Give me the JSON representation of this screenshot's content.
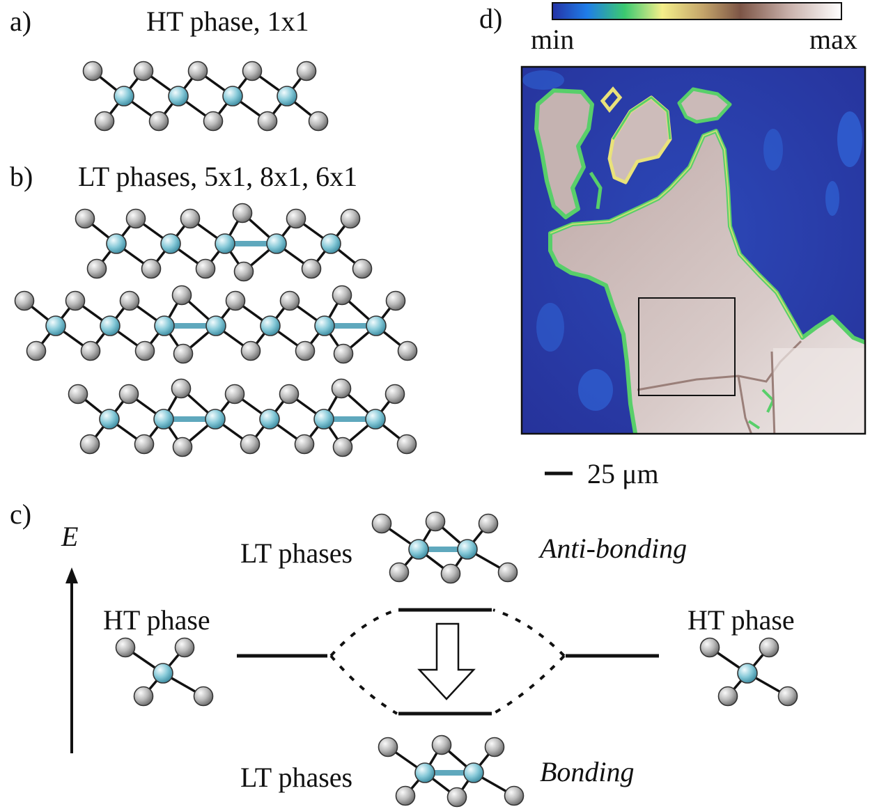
{
  "panels": {
    "a": {
      "label": "a)",
      "title": "HT phase, 1x1"
    },
    "b": {
      "label": "b)",
      "title": "LT phases, 5x1, 8x1, 6x1"
    },
    "c": {
      "label": "c)",
      "axis_label": "E",
      "ht_left": "HT phase",
      "ht_right": "HT phase",
      "lt_top": "LT phases",
      "lt_bottom": "LT phases",
      "antibonding": "Anti-bonding",
      "bonding": "Bonding"
    },
    "d": {
      "label": "d)",
      "colorbar_min": "min",
      "colorbar_max": "max",
      "scale_bar": "25 μm",
      "colorbar_colors": [
        "#2533a6",
        "#1f7de8",
        "#3bc970",
        "#f4ef8a",
        "#c4a56a",
        "#7d5546",
        "#c9b1ab",
        "#ffffff"
      ],
      "map_colors": {
        "background": "#2a3aa0",
        "background_light": "#2f5fd0",
        "edge_green": "#58cf6a",
        "edge_yellow": "#e9e27a",
        "flake": "#c9b7b5",
        "flake_light": "#ece4e2"
      }
    }
  },
  "atom_colors": {
    "gray": "#b3b3b3",
    "cyan": "#7fc4d4",
    "pair_bond": "#5fa8bd"
  }
}
